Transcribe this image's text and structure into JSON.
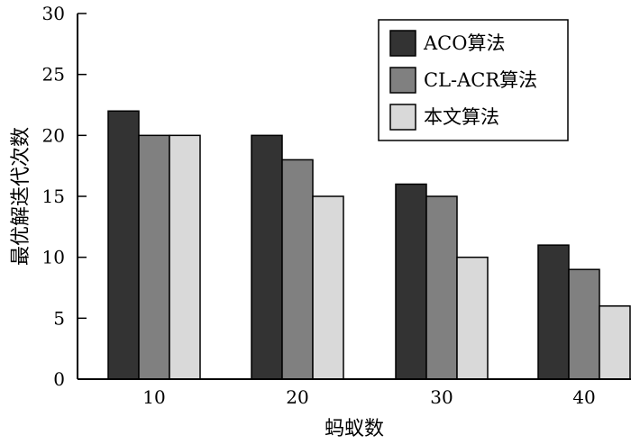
{
  "chart_data": {
    "type": "bar",
    "xlabel": "蚂蚁数",
    "ylabel": "最优解迭代次数",
    "categories": [
      "10",
      "20",
      "30",
      "40"
    ],
    "ylim": [
      0,
      30
    ],
    "yticks": [
      0,
      5,
      10,
      15,
      20,
      25,
      30
    ],
    "grid": false,
    "legend_position": "top-right",
    "series": [
      {
        "name": "ACO算法",
        "color": "#333333",
        "values": [
          22,
          20,
          16,
          11
        ]
      },
      {
        "name": "CL-ACR算法",
        "color": "#808080",
        "values": [
          20,
          18,
          15,
          9
        ]
      },
      {
        "name": "本文算法",
        "color": "#d9d9d9",
        "values": [
          20,
          15,
          10,
          6
        ]
      }
    ]
  }
}
